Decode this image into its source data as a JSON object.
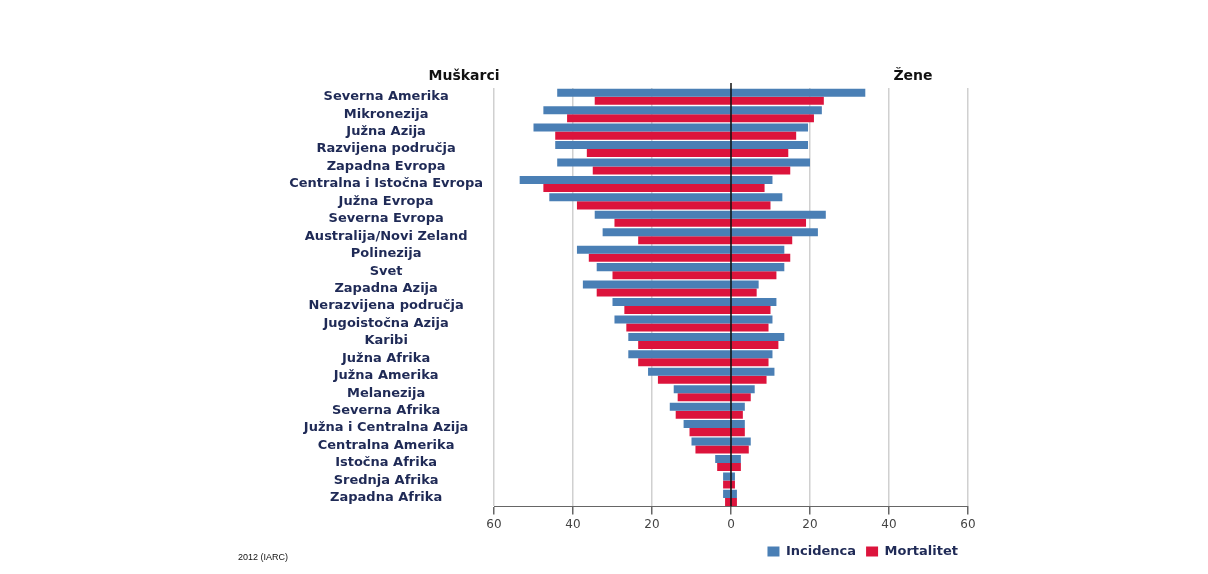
{
  "chart_data": {
    "type": "bar",
    "orientation": "horizontal",
    "categories": [
      "Severna Amerika",
      "Mikronezija",
      "Južna Azija",
      "Razvijena područja",
      "Zapadna Evropa",
      "Centralna i Istočna Evropa",
      "Južna Evropa",
      "Severna Evropa",
      "Australija/Novi Zeland",
      "Polinezija",
      "Svet",
      "Zapadna Azija",
      "Nerazvijena područja",
      "Jugoistočna Azija",
      "Karibi",
      "Južna Afrika",
      "Južna Amerika",
      "Melanezija",
      "Severna Afrika",
      "Južna i Centralna Azija",
      "Centralna Amerika",
      "Istočna Afrika",
      "Srednja Afrika",
      "Zapadna Afrika"
    ],
    "series": [
      {
        "name": "Incidenca",
        "color": "#4a7fb5",
        "base": [
          -44,
          -47.5,
          -50,
          -44.5,
          -44,
          -53.5,
          -46,
          -34.5,
          -32.5,
          -39,
          -34,
          -37.5,
          -30,
          -29.5,
          -26,
          -26,
          -21,
          -14.5,
          -15.5,
          -12,
          -10,
          -4,
          -2,
          -2
        ],
        "values": [
          78,
          70.5,
          69.5,
          64,
          64,
          64,
          59,
          58.5,
          54.5,
          52.5,
          47.5,
          44.5,
          41.5,
          40,
          39.5,
          36.5,
          32,
          20.5,
          19,
          15.5,
          15,
          6.5,
          3,
          3.5
        ]
      },
      {
        "name": "Mortalitet",
        "color": "#dc143c",
        "base": [
          -34.5,
          -41.5,
          -44.5,
          -36.5,
          -35,
          -47.5,
          -39,
          -29.5,
          -23.5,
          -36,
          -30,
          -34,
          -27,
          -26.5,
          -23.5,
          -23.5,
          -18.5,
          -13.5,
          -14,
          -10.5,
          -9,
          -3.5,
          -2,
          -1.5
        ],
        "values": [
          58,
          62.5,
          61,
          51,
          50,
          56,
          49,
          48.5,
          39,
          51,
          41.5,
          40.5,
          37,
          36,
          35.5,
          33,
          27.5,
          18.5,
          17,
          14,
          13.5,
          6,
          3,
          3
        ]
      }
    ],
    "xlim": [
      -60,
      60
    ],
    "xticks": [
      {
        "value": -60,
        "label": "60"
      },
      {
        "value": -40,
        "label": "40"
      },
      {
        "value": -20,
        "label": "20"
      },
      0,
      20,
      40,
      60
    ],
    "grid": "x",
    "legend": "bottom right",
    "annotations": [
      "Muškarci",
      "Žene",
      "2012 (IARC)"
    ]
  }
}
